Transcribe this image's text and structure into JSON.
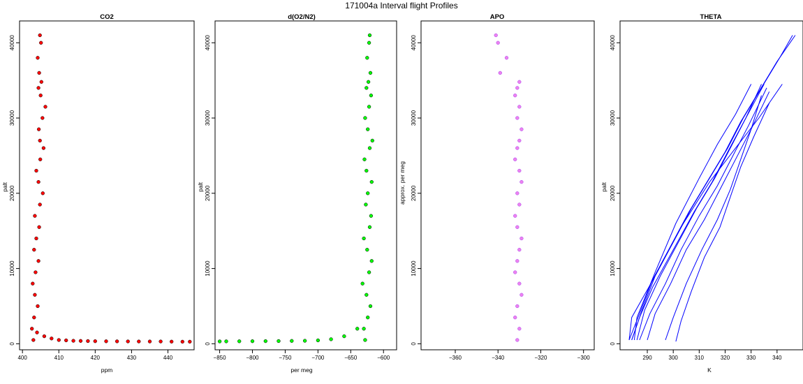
{
  "figure_title": "171004a   Interval flight Profiles",
  "chart_data": [
    {
      "type": "scatter",
      "title": "CO2",
      "xlabel": "ppm",
      "ylabel": "palt",
      "xlim": [
        399.2,
        447.2
      ],
      "ylim": [
        -800,
        42900
      ],
      "xticks": [
        400,
        410,
        420,
        430,
        440
      ],
      "yticks": [
        0,
        10000,
        20000,
        30000,
        40000
      ],
      "colors": {
        "fill": "#ff0000",
        "edge": "#000000"
      },
      "series": [
        {
          "x": [
            403.0,
            402.6,
            403.2,
            404.2,
            403.4,
            402.8,
            403.6,
            404.4,
            403.2,
            403.8,
            404.6,
            403.4,
            404.8,
            405.6,
            404.4,
            403.8,
            404.9,
            405.8,
            404.8,
            404.5,
            405.5,
            406.3,
            405.0,
            404.4,
            405.2,
            404.6,
            404.2,
            405.1,
            404.8
          ],
          "y": [
            500,
            2000,
            3500,
            5000,
            6500,
            8000,
            9500,
            11000,
            12500,
            14000,
            15500,
            17000,
            18500,
            20000,
            21500,
            23000,
            24500,
            26000,
            27000,
            28500,
            30000,
            31500,
            33000,
            34000,
            34800,
            36000,
            38000,
            40000,
            41000
          ]
        },
        {
          "x": [
            404.0,
            406.0,
            408.0,
            410.0,
            412.0,
            414.0,
            416.0,
            418.0,
            420.0,
            423.0,
            426.0,
            429.0,
            432.0,
            435.0,
            438.0,
            441.0,
            444.0,
            446.0
          ],
          "y": [
            1500,
            1000,
            700,
            500,
            450,
            400,
            380,
            360,
            340,
            330,
            320,
            310,
            300,
            300,
            300,
            290,
            280,
            280
          ]
        }
      ]
    },
    {
      "type": "scatter",
      "title": "d(O2/N2)",
      "xlabel": "per meg",
      "ylabel": "palt",
      "xlim": [
        -857,
        -580
      ],
      "ylim": [
        -800,
        42900
      ],
      "xticks": [
        -850,
        -800,
        -750,
        -700,
        -650,
        -600
      ],
      "yticks": [
        0,
        10000,
        20000,
        30000,
        40000
      ],
      "colors": {
        "fill": "#00ff00",
        "edge": "#000000"
      },
      "series": [
        {
          "x": [
            -628,
            -630,
            -624,
            -620,
            -626,
            -632,
            -622,
            -618,
            -625,
            -630,
            -621,
            -619,
            -627,
            -624,
            -618,
            -626,
            -629,
            -621,
            -617,
            -624,
            -628,
            -622,
            -619,
            -626,
            -623,
            -620,
            -625,
            -622,
            -621
          ],
          "y": [
            500,
            2000,
            3500,
            5000,
            6500,
            8000,
            9500,
            11000,
            12500,
            14000,
            15500,
            17000,
            18500,
            20000,
            21500,
            23000,
            24500,
            26000,
            27000,
            28500,
            30000,
            31500,
            33000,
            34000,
            34800,
            36000,
            38000,
            40000,
            41000
          ]
        },
        {
          "x": [
            -640,
            -660,
            -680,
            -700,
            -720,
            -740,
            -760,
            -780,
            -800,
            -820,
            -840,
            -850
          ],
          "y": [
            2000,
            1000,
            600,
            450,
            400,
            380,
            360,
            350,
            340,
            330,
            320,
            310
          ]
        }
      ]
    },
    {
      "type": "scatter",
      "title": "APO",
      "xlabel": "",
      "ylabel": "approx. per meg",
      "xlim": [
        -376,
        -295
      ],
      "ylim": [
        -800,
        42900
      ],
      "xticks": [
        -360,
        -340,
        -320,
        -300
      ],
      "yticks": [
        0,
        10000,
        20000,
        30000,
        40000
      ],
      "colors": {
        "fill": "#ee82ee",
        "edge": "#a040f0"
      },
      "series": [
        {
          "x": [
            -331,
            -330,
            -332,
            -331,
            -329,
            -330,
            -332,
            -331,
            -330,
            -329,
            -331,
            -332,
            -330,
            -331,
            -329,
            -330,
            -332,
            -331,
            -330,
            -329,
            -331,
            -330,
            -332,
            -331,
            -330,
            -339,
            -336,
            -340,
            -341
          ],
          "y": [
            500,
            2000,
            3500,
            5000,
            6500,
            8000,
            9500,
            11000,
            12500,
            14000,
            15500,
            17000,
            18500,
            20000,
            21500,
            23000,
            24500,
            26000,
            27000,
            28500,
            30000,
            31500,
            33000,
            34000,
            34800,
            36000,
            38000,
            40000,
            41000
          ]
        }
      ]
    },
    {
      "type": "line",
      "title": "THETA",
      "xlabel": "K",
      "ylabel": "palt",
      "xlim": [
        279.5,
        350
      ],
      "ylim": [
        -800,
        42900
      ],
      "xticks": [
        290,
        300,
        310,
        320,
        330,
        340
      ],
      "yticks": [
        0,
        10000,
        20000,
        30000,
        40000
      ],
      "colors": {
        "line": "#0000ff"
      },
      "series": [
        {
          "x": [
            283,
            287,
            292,
            299,
            306,
            313,
            320,
            326,
            333,
            340,
            345,
            347
          ],
          "y": [
            500,
            4000,
            8500,
            13000,
            17500,
            21500,
            25500,
            29500,
            33500,
            37500,
            40000,
            41000
          ]
        },
        {
          "x": [
            284,
            288,
            293,
            300,
            307,
            314,
            321,
            327,
            334,
            341,
            346
          ],
          "y": [
            500,
            4500,
            9000,
            13500,
            18000,
            22000,
            26000,
            30000,
            34000,
            38000,
            41000
          ]
        },
        {
          "x": [
            283,
            284,
            293,
            303,
            314,
            324,
            333,
            342
          ],
          "y": [
            500,
            3500,
            9000,
            15500,
            21500,
            26000,
            30000,
            34500
          ]
        },
        {
          "x": [
            284,
            287,
            292,
            300,
            308,
            315,
            321,
            328,
            334
          ],
          "y": [
            500,
            3500,
            7500,
            12500,
            17500,
            21500,
            25500,
            30000,
            34500
          ]
        },
        {
          "x": [
            286,
            289,
            295,
            302,
            309,
            316,
            322,
            328,
            335
          ],
          "y": [
            500,
            4500,
            9000,
            13500,
            18000,
            22000,
            26000,
            30000,
            34500
          ]
        },
        {
          "x": [
            287,
            291,
            297,
            303,
            310,
            317,
            323,
            329,
            336
          ],
          "y": [
            500,
            4000,
            8000,
            12500,
            17000,
            21000,
            25000,
            29000,
            34000
          ]
        },
        {
          "x": [
            290,
            293,
            299,
            305,
            312,
            318,
            324,
            330,
            337
          ],
          "y": [
            500,
            4000,
            8000,
            12500,
            16500,
            20500,
            24500,
            28500,
            33500
          ]
        },
        {
          "x": [
            297,
            300,
            305,
            311,
            317,
            322,
            326,
            330,
            334
          ],
          "y": [
            500,
            3500,
            8000,
            12500,
            16500,
            20500,
            24500,
            28500,
            33000
          ]
        },
        {
          "x": [
            301,
            303,
            307,
            312,
            318,
            322,
            326,
            331,
            337
          ],
          "y": [
            300,
            3000,
            7000,
            11500,
            15500,
            19500,
            23500,
            27500,
            32000
          ]
        },
        {
          "x": [
            285,
            286,
            293,
            301,
            310,
            317,
            324,
            330
          ],
          "y": [
            500,
            3500,
            9500,
            16000,
            22000,
            26500,
            30500,
            34500
          ]
        }
      ]
    }
  ]
}
